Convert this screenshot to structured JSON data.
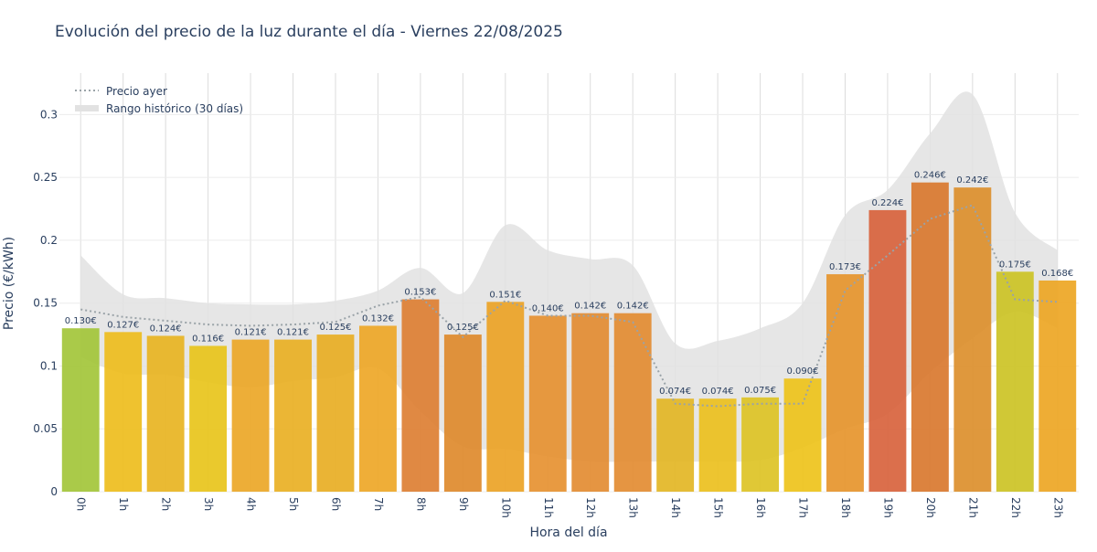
{
  "chart_data": {
    "type": "bar",
    "title": "Evolución del precio de la luz durante el día - Viernes 22/08/2025",
    "xlabel": "Hora del día",
    "ylabel": "Precio (€/kWh)",
    "ylim": [
      0,
      0.333
    ],
    "yticks": [
      0,
      0.05,
      0.1,
      0.15,
      0.2,
      0.25,
      0.3
    ],
    "ytick_labels": [
      "0",
      "0.05",
      "0.1",
      "0.15",
      "0.2",
      "0.25",
      "0.3"
    ],
    "grid": true,
    "legend_position": "top-left",
    "categories": [
      "0h",
      "1h",
      "2h",
      "3h",
      "4h",
      "5h",
      "6h",
      "7h",
      "8h",
      "9h",
      "10h",
      "11h",
      "12h",
      "13h",
      "14h",
      "15h",
      "16h",
      "17h",
      "18h",
      "19h",
      "20h",
      "21h",
      "22h",
      "23h"
    ],
    "values": [
      0.13,
      0.127,
      0.124,
      0.116,
      0.121,
      0.121,
      0.125,
      0.132,
      0.153,
      0.125,
      0.151,
      0.14,
      0.142,
      0.142,
      0.074,
      0.074,
      0.075,
      0.09,
      0.173,
      0.224,
      0.246,
      0.242,
      0.175,
      0.168
    ],
    "value_labels": [
      "0.130€",
      "0.127€",
      "0.124€",
      "0.116€",
      "0.121€",
      "0.121€",
      "0.125€",
      "0.132€",
      "0.153€",
      "0.125€",
      "0.151€",
      "0.140€",
      "0.142€",
      "0.142€",
      "0.074€",
      "0.074€",
      "0.075€",
      "0.090€",
      "0.173€",
      "0.224€",
      "0.246€",
      "0.242€",
      "0.175€",
      "0.168€"
    ],
    "bar_colors": [
      "#a3c639",
      "#eebd1d",
      "#e8b422",
      "#e8c41b",
      "#eca727",
      "#e9b024",
      "#e8ae24",
      "#eea727",
      "#dd7f33",
      "#de8a2d",
      "#eca326",
      "#e69131",
      "#e38c32",
      "#e38c32",
      "#e3b625",
      "#ebc01e",
      "#ddc325",
      "#eec31b",
      "#e6952d",
      "#d8633d",
      "#d9782f",
      "#dc8f2d",
      "#ccc325",
      "#eda624"
    ],
    "series": [
      {
        "name": "Precio ayer",
        "type": "line",
        "style": "dotted",
        "color": "#9aa3a8",
        "values": [
          0.145,
          0.139,
          0.136,
          0.133,
          0.132,
          0.133,
          0.135,
          0.148,
          0.155,
          0.123,
          0.152,
          0.14,
          0.14,
          0.135,
          0.07,
          0.068,
          0.07,
          0.07,
          0.16,
          0.188,
          0.217,
          0.228,
          0.153,
          0.151
        ]
      },
      {
        "name": "Rango histórico (30 días)",
        "type": "area-band",
        "color": "#e2e2e2",
        "lower": [
          0.107,
          0.094,
          0.093,
          0.087,
          0.083,
          0.088,
          0.091,
          0.098,
          0.064,
          0.036,
          0.034,
          0.028,
          0.024,
          0.024,
          0.024,
          0.024,
          0.025,
          0.035,
          0.05,
          0.062,
          0.095,
          0.122,
          0.143,
          0.13
        ],
        "upper": [
          0.188,
          0.157,
          0.154,
          0.15,
          0.149,
          0.149,
          0.152,
          0.16,
          0.178,
          0.158,
          0.212,
          0.192,
          0.185,
          0.18,
          0.118,
          0.12,
          0.13,
          0.15,
          0.22,
          0.24,
          0.285,
          0.316,
          0.222,
          0.192
        ]
      }
    ]
  }
}
